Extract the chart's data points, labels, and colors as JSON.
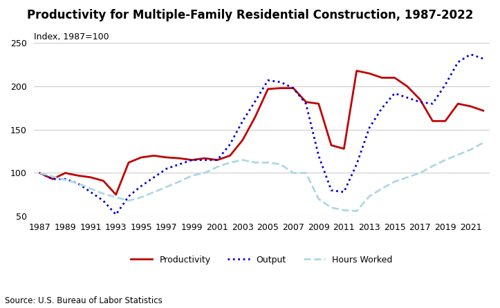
{
  "title": "Productivity for Multiple-Family Residential Construction, 1987-2022",
  "subtitle": "Index, 1987=100",
  "source": "Source: U.S. Bureau of Labor Statistics",
  "years": [
    1987,
    1988,
    1989,
    1990,
    1991,
    1992,
    1993,
    1994,
    1995,
    1996,
    1997,
    1998,
    1999,
    2000,
    2001,
    2002,
    2003,
    2004,
    2005,
    2006,
    2007,
    2008,
    2009,
    2010,
    2011,
    2012,
    2013,
    2014,
    2015,
    2016,
    2017,
    2018,
    2019,
    2020,
    2021,
    2022
  ],
  "productivity": [
    100,
    93,
    100,
    97,
    95,
    91,
    75,
    112,
    118,
    120,
    118,
    117,
    115,
    117,
    115,
    120,
    138,
    165,
    197,
    198,
    198,
    182,
    180,
    132,
    128,
    218,
    215,
    210,
    210,
    200,
    185,
    160,
    160,
    180,
    177,
    172
  ],
  "output": [
    100,
    93,
    93,
    88,
    78,
    68,
    52,
    73,
    85,
    95,
    105,
    110,
    115,
    115,
    115,
    133,
    160,
    183,
    207,
    205,
    198,
    180,
    120,
    80,
    78,
    110,
    152,
    175,
    192,
    187,
    182,
    180,
    202,
    228,
    237,
    232
  ],
  "hours_worked": [
    100,
    96,
    92,
    88,
    82,
    76,
    72,
    68,
    72,
    78,
    84,
    90,
    97,
    100,
    107,
    112,
    115,
    112,
    112,
    110,
    100,
    100,
    70,
    60,
    57,
    56,
    73,
    82,
    90,
    95,
    100,
    108,
    115,
    121,
    127,
    135
  ],
  "productivity_color": "#c00000",
  "output_color": "#0000cd",
  "hours_color": "#add8e6",
  "ylim": [
    50,
    250
  ],
  "yticks": [
    50,
    100,
    150,
    200,
    250
  ],
  "legend_labels": [
    "Productivity",
    "Output",
    "Hours Worked"
  ]
}
